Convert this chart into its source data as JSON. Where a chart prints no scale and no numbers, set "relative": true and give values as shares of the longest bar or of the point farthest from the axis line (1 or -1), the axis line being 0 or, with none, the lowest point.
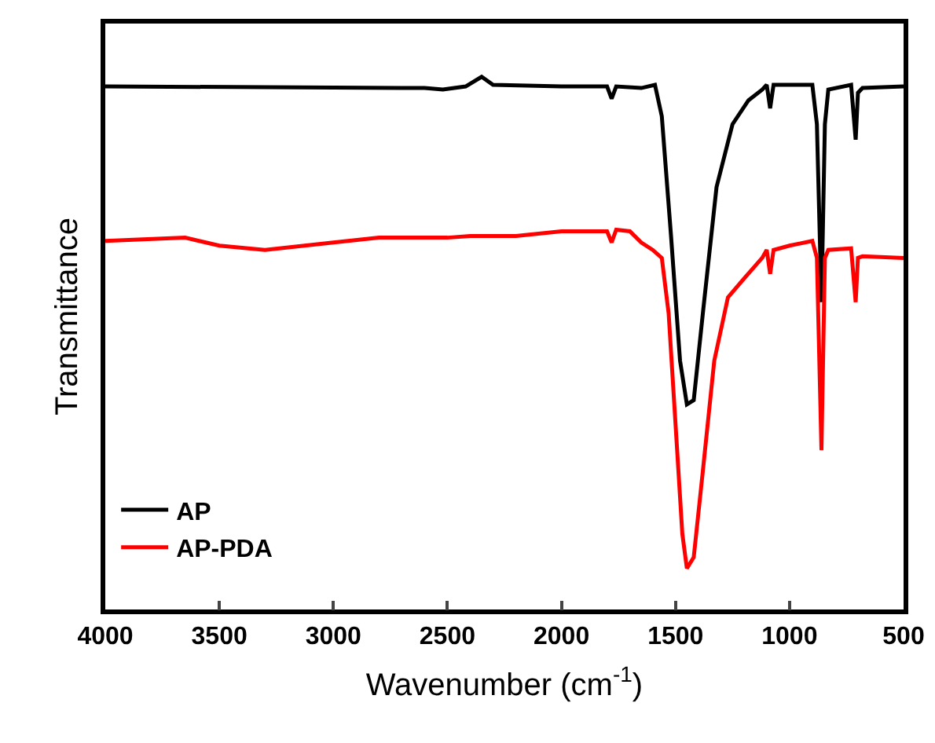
{
  "chart_data": {
    "type": "line",
    "xlabel": "Wavenumber (cm$^{-1}$)",
    "ylabel": "Transmittance",
    "relative": true,
    "xlim": [
      4000,
      500
    ],
    "xticks": [
      4000,
      3500,
      3000,
      2500,
      2000,
      1500,
      1000,
      500
    ],
    "grid": false,
    "legend": "bottom left",
    "marker": "none",
    "line_style": "solid",
    "series": [
      {
        "name": "AP",
        "color": "#000000",
        "x": [
          4000,
          2600,
          2520,
          2420,
          2350,
          2300,
          2000,
          1800,
          1780,
          1760,
          1650,
          1590,
          1560,
          1520,
          1480,
          1450,
          1420,
          1380,
          1320,
          1250,
          1180,
          1120,
          1100,
          1085,
          1070,
          900,
          880,
          860,
          845,
          830,
          730,
          710,
          700,
          680,
          500
        ],
        "values": [
          0.982,
          0.979,
          0.976,
          0.982,
          1,
          0.985,
          0.982,
          0.982,
          0.959,
          0.982,
          0.979,
          0.985,
          0.926,
          0.704,
          0.467,
          0.385,
          0.393,
          0.556,
          0.793,
          0.911,
          0.956,
          0.976,
          0.985,
          0.941,
          0.985,
          0.985,
          0.911,
          0.577,
          0.911,
          0.976,
          0.985,
          0.882,
          0.97,
          0.979,
          0.982
        ]
      },
      {
        "name": "AP-PDA",
        "color": "#ff0000",
        "x": [
          4000,
          3650,
          3500,
          3300,
          3000,
          2800,
          2500,
          2400,
          2200,
          2000,
          1800,
          1780,
          1760,
          1700,
          1650,
          1600,
          1560,
          1530,
          1500,
          1470,
          1450,
          1420,
          1380,
          1330,
          1270,
          1200,
          1120,
          1100,
          1085,
          1070,
          1000,
          900,
          880,
          860,
          845,
          830,
          730,
          710,
          700,
          680,
          500
        ],
        "values": [
          0.692,
          0.698,
          0.683,
          0.675,
          0.689,
          0.698,
          0.698,
          0.701,
          0.701,
          0.71,
          0.71,
          0.689,
          0.713,
          0.71,
          0.689,
          0.675,
          0.66,
          0.556,
          0.349,
          0.142,
          0.077,
          0.098,
          0.26,
          0.467,
          0.586,
          0.621,
          0.66,
          0.675,
          0.63,
          0.675,
          0.683,
          0.692,
          0.66,
          0.299,
          0.66,
          0.675,
          0.678,
          0.577,
          0.66,
          0.663,
          0.66
        ]
      }
    ]
  }
}
